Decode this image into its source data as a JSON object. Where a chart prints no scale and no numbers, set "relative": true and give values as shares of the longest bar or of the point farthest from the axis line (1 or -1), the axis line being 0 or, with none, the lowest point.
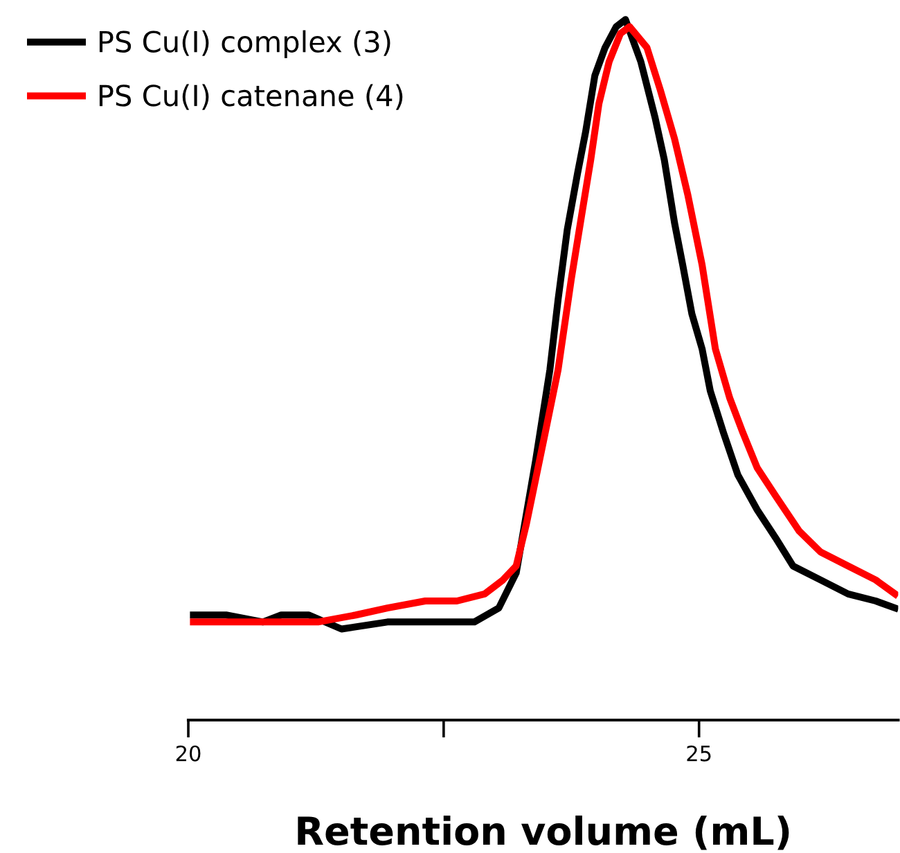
{
  "chart_data": {
    "type": "line",
    "relative": true,
    "xlabel": "Retention volume (mL)",
    "xlim": [
      20,
      26.95
    ],
    "xticks": [
      20,
      {
        "value": 22.5,
        "label": null
      },
      25
    ],
    "legend": "top left",
    "grid": false,
    "marker": "none",
    "line_style": "solid",
    "series": [
      {
        "name": "PS Cu(I) complex (3)",
        "color": "#000000",
        "x": [
          20.05,
          20.37,
          20.73,
          20.91,
          21.18,
          21.5,
          21.95,
          22.4,
          22.63,
          22.8,
          23.04,
          23.21,
          23.4,
          23.54,
          23.62,
          23.71,
          23.81,
          23.89,
          23.98,
          24.08,
          24.19,
          24.28,
          24.43,
          24.57,
          24.66,
          24.76,
          24.84,
          24.93,
          25.03,
          25.11,
          25.24,
          25.38,
          25.57,
          25.75,
          25.92,
          26.19,
          26.46,
          26.73,
          26.92
        ],
        "values": [
          0.15,
          0.15,
          0.14,
          0.15,
          0.15,
          0.13,
          0.14,
          0.14,
          0.14,
          0.14,
          0.16,
          0.21,
          0.37,
          0.5,
          0.6,
          0.7,
          0.78,
          0.84,
          0.92,
          0.96,
          0.99,
          1,
          0.94,
          0.86,
          0.8,
          0.71,
          0.65,
          0.58,
          0.53,
          0.47,
          0.41,
          0.35,
          0.3,
          0.26,
          0.22,
          0.2,
          0.18,
          0.17,
          0.16
        ]
      },
      {
        "name": "PS Cu(I) catenane (4)",
        "color": "#ff0000",
        "x": [
          20.05,
          20.37,
          20.73,
          20.96,
          21.27,
          21.64,
          21.95,
          22.32,
          22.63,
          22.9,
          23.08,
          23.21,
          23.31,
          23.48,
          23.62,
          23.75,
          23.85,
          23.94,
          24.02,
          24.12,
          24.23,
          24.32,
          24.49,
          24.62,
          24.76,
          24.89,
          25.03,
          25.16,
          25.3,
          25.43,
          25.57,
          25.75,
          25.98,
          26.19,
          26.46,
          26.73,
          26.92
        ],
        "values": [
          0.14,
          0.14,
          0.14,
          0.14,
          0.14,
          0.15,
          0.16,
          0.17,
          0.17,
          0.18,
          0.2,
          0.22,
          0.28,
          0.4,
          0.5,
          0.63,
          0.72,
          0.8,
          0.88,
          0.94,
          0.98,
          0.99,
          0.96,
          0.9,
          0.83,
          0.75,
          0.65,
          0.53,
          0.46,
          0.41,
          0.36,
          0.32,
          0.27,
          0.24,
          0.22,
          0.2,
          0.18
        ]
      }
    ]
  }
}
